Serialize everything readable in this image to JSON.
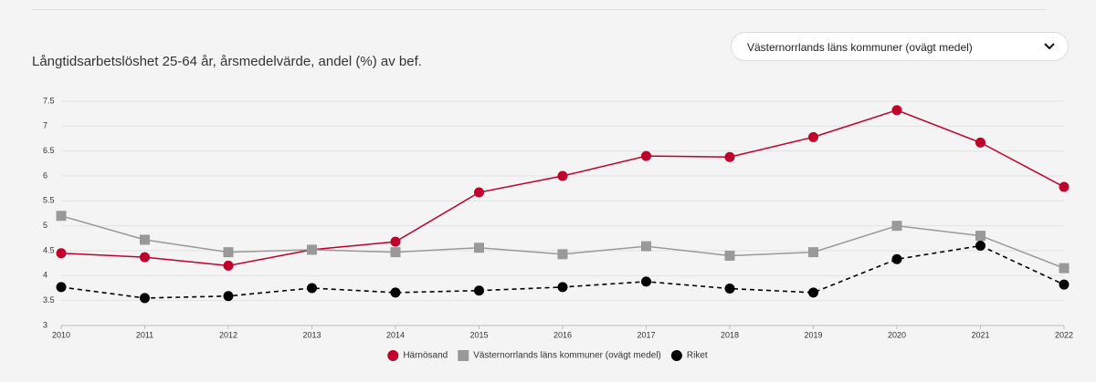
{
  "dropdown": "Västernorrlands läns kommuner (ovägt medel)",
  "chart_data": {
    "type": "line",
    "title": "Långtidsarbetslöshet 25-64 år, årsmedelvärde, andel (%) av bef.",
    "x": [
      2010,
      2011,
      2012,
      2013,
      2014,
      2015,
      2016,
      2017,
      2018,
      2019,
      2020,
      2021,
      2022
    ],
    "xlim": [
      2010,
      2022
    ],
    "xticks": [
      2010,
      2011,
      2012,
      2013,
      2014,
      2015,
      2016,
      2017,
      2018,
      2019,
      2020,
      2021,
      2022
    ],
    "ylim": [
      3,
      7.5
    ],
    "yticks": [
      3,
      3.5,
      4,
      4.5,
      5,
      5.5,
      6,
      6.5,
      7,
      7.5
    ],
    "grid": true,
    "legend": "bottom",
    "series": [
      {
        "name": "Härnösand",
        "color": "#c0002a",
        "marker": "circle",
        "dashed": false,
        "values": [
          4.45,
          4.37,
          4.2,
          4.52,
          4.68,
          5.67,
          6.0,
          6.4,
          6.38,
          6.78,
          7.32,
          6.67,
          5.78
        ]
      },
      {
        "name": "Västernorrlands läns kommuner (ovägt medel)",
        "color": "#999999",
        "marker": "square",
        "dashed": false,
        "values": [
          5.2,
          4.72,
          4.47,
          4.52,
          4.47,
          4.56,
          4.43,
          4.59,
          4.4,
          4.47,
          5.0,
          4.8,
          4.15
        ]
      },
      {
        "name": "Riket",
        "color": "#000000",
        "marker": "circle",
        "dashed": true,
        "values": [
          3.77,
          3.55,
          3.59,
          3.75,
          3.66,
          3.7,
          3.77,
          3.88,
          3.74,
          3.66,
          4.33,
          4.6,
          3.82
        ]
      }
    ]
  }
}
